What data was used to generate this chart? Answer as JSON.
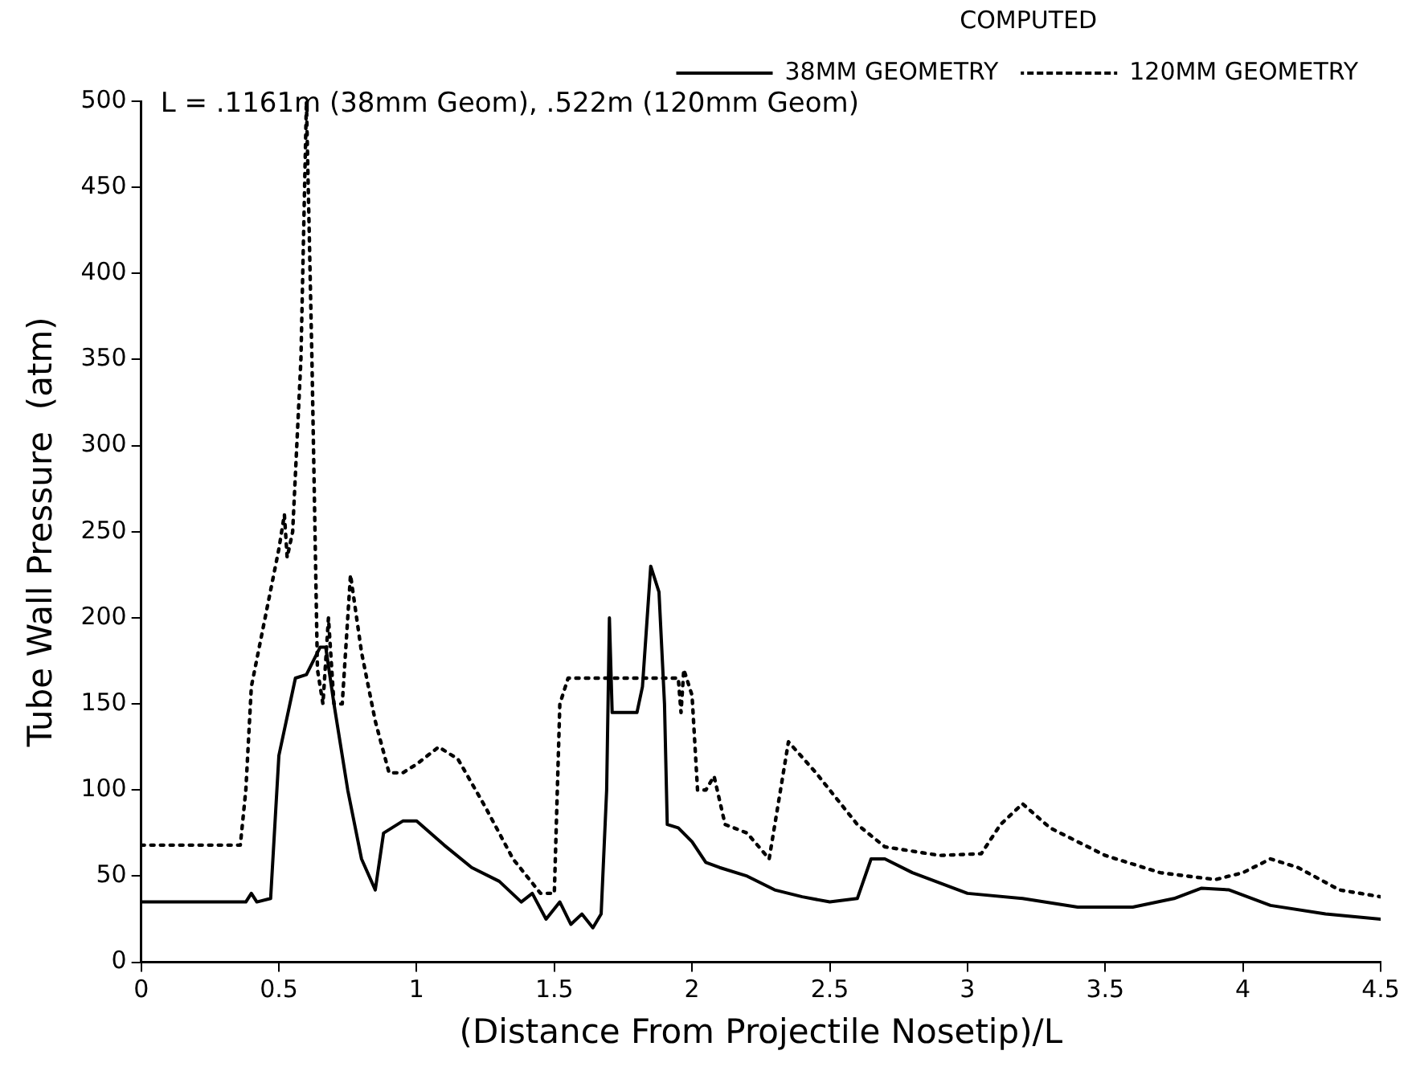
{
  "chart_data": {
    "type": "line",
    "xlabel": "(Distance From Projectile Nosetip)/L",
    "ylabel": "Tube Wall Pressure  (atm)",
    "annotations": [
      "L = .1161m (38mm Geom), .522m (120mm Geom)"
    ],
    "legend_title": "COMPUTED",
    "legend": "top right",
    "grid": false,
    "marker": "none",
    "xlim": [
      0,
      4.5
    ],
    "xticks": [
      0,
      0.5,
      1,
      1.5,
      2,
      2.5,
      3,
      3.5,
      4,
      4.5
    ],
    "ylim": [
      0,
      500
    ],
    "yticks": [
      0,
      50,
      100,
      150,
      200,
      250,
      300,
      350,
      400,
      450,
      500
    ],
    "series": [
      {
        "name": "38MM GEOMETRY",
        "color": "#000000",
        "line_style": "solid",
        "x": [
          0,
          0.38,
          0.4,
          0.42,
          0.47,
          0.5,
          0.56,
          0.6,
          0.65,
          0.67,
          0.7,
          0.75,
          0.8,
          0.85,
          0.88,
          0.95,
          1.0,
          1.1,
          1.2,
          1.3,
          1.38,
          1.42,
          1.47,
          1.52,
          1.56,
          1.6,
          1.64,
          1.67,
          1.69,
          1.7,
          1.71,
          1.8,
          1.82,
          1.85,
          1.88,
          1.9,
          1.91,
          1.95,
          2.0,
          2.05,
          2.1,
          2.2,
          2.3,
          2.4,
          2.5,
          2.6,
          2.65,
          2.7,
          2.8,
          3.0,
          3.2,
          3.4,
          3.6,
          3.75,
          3.85,
          3.95,
          4.1,
          4.3,
          4.5
        ],
        "values": [
          35,
          35,
          40,
          35,
          37,
          120,
          165,
          167,
          183,
          183,
          150,
          100,
          60,
          42,
          75,
          82,
          82,
          68,
          55,
          47,
          35,
          40,
          25,
          35,
          22,
          28,
          20,
          28,
          100,
          200,
          145,
          145,
          160,
          230,
          215,
          150,
          80,
          78,
          70,
          58,
          55,
          50,
          42,
          38,
          35,
          37,
          60,
          60,
          52,
          40,
          37,
          32,
          32,
          37,
          43,
          42,
          33,
          28,
          25
        ]
      },
      {
        "name": "120MM GEOMETRY",
        "color": "#000000",
        "line_style": "dotted",
        "x": [
          0,
          0.36,
          0.38,
          0.4,
          0.45,
          0.5,
          0.52,
          0.53,
          0.55,
          0.58,
          0.6,
          0.62,
          0.64,
          0.66,
          0.68,
          0.7,
          0.73,
          0.76,
          0.8,
          0.85,
          0.9,
          0.95,
          1.0,
          1.08,
          1.15,
          1.25,
          1.35,
          1.45,
          1.5,
          1.52,
          1.55,
          1.65,
          1.95,
          1.96,
          1.97,
          2.0,
          2.02,
          2.05,
          2.08,
          2.12,
          2.2,
          2.28,
          2.35,
          2.45,
          2.6,
          2.7,
          2.9,
          3.05,
          3.12,
          3.2,
          3.3,
          3.5,
          3.7,
          3.9,
          4.0,
          4.1,
          4.2,
          4.35,
          4.5
        ],
        "values": [
          68,
          68,
          100,
          160,
          200,
          240,
          260,
          235,
          250,
          350,
          500,
          350,
          170,
          150,
          200,
          150,
          150,
          225,
          180,
          140,
          110,
          110,
          115,
          125,
          118,
          90,
          60,
          40,
          40,
          150,
          165,
          165,
          165,
          145,
          170,
          155,
          100,
          100,
          108,
          80,
          75,
          60,
          128,
          110,
          80,
          67,
          62,
          63,
          80,
          92,
          78,
          62,
          52,
          48,
          52,
          60,
          55,
          42,
          38
        ]
      }
    ]
  }
}
